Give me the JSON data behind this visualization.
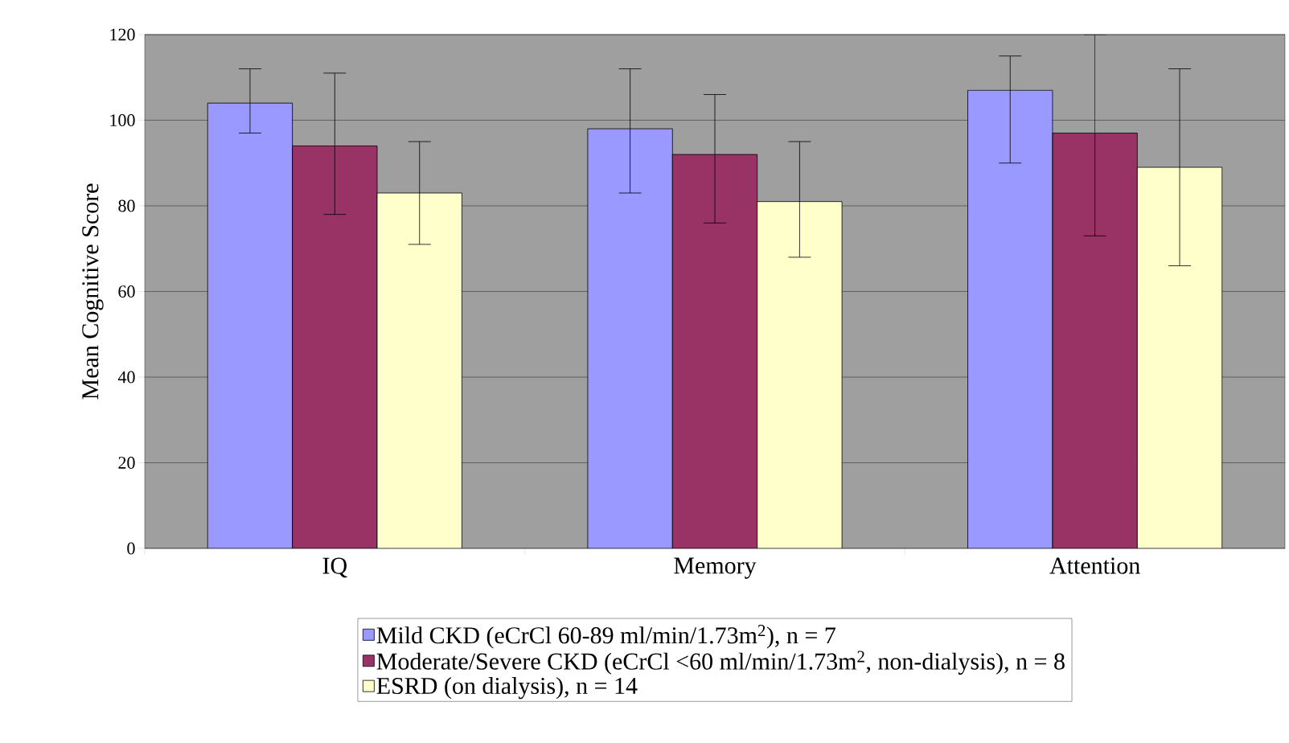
{
  "chart_data": {
    "type": "bar",
    "ylabel": "Mean Cognitive Score",
    "categories": [
      "IQ",
      "Memory",
      "Attention"
    ],
    "ylim": [
      0,
      120
    ],
    "yticks": [
      0,
      20,
      40,
      60,
      80,
      100,
      120
    ],
    "grid": "y",
    "legend": "bottom",
    "series": [
      {
        "name": "Mild CKD (eCrCl 60-89 ml/min/1.73m$^{2}$), n = 7",
        "color": "#9999ff",
        "values": [
          104,
          98,
          107
        ],
        "errors": [
          [
            97,
            112
          ],
          [
            83,
            112
          ],
          [
            90,
            115
          ]
        ]
      },
      {
        "name": "Moderate/Severe CKD (eCrCl <60 ml/min/1.73m$^{2}$, non-dialysis), n = 8",
        "color": "#993366",
        "values": [
          94,
          92,
          97
        ],
        "errors": [
          [
            78,
            111
          ],
          [
            76,
            106
          ],
          [
            73,
            120
          ]
        ]
      },
      {
        "name": "ESRD (on dialysis), n = 14",
        "color": "#ffffcc",
        "values": [
          83,
          81,
          89
        ],
        "errors": [
          [
            71,
            95
          ],
          [
            68,
            95
          ],
          [
            66,
            112
          ]
        ]
      }
    ]
  }
}
